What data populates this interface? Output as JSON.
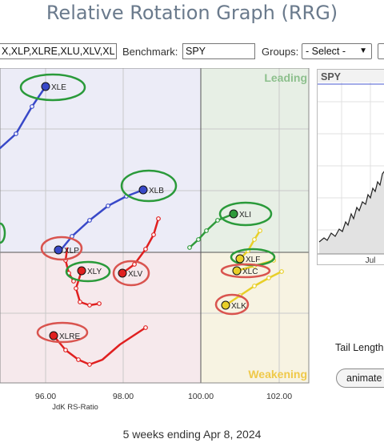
{
  "page_title": "Relative Rotation Graph (RRG)",
  "toolbar": {
    "symbols_value": "X,XLP,XLRE,XLU,XLV,XL",
    "benchmark_label": "Benchmark:",
    "benchmark_value": "SPY",
    "groups_label": "Groups:",
    "groups_selected": "- Select -"
  },
  "chart": {
    "quadrants": {
      "leading": "Leading",
      "weakening": "Weakening"
    },
    "x_ticks": [
      "96.00",
      "98.00",
      "100.00",
      "102.00"
    ],
    "x_label": "JdK RS-Ratio",
    "colors": {
      "leading_bg": "#e6efe4",
      "improving_bg": "#ececf7",
      "lagging_bg": "#f6e9ec",
      "weakening_bg": "#f7f3e2",
      "leading_text": "#8dc08d",
      "weakening_text": "#efc94a",
      "green_highlight": "#2a9a3a",
      "red_highlight": "#d9544f"
    },
    "labels": {
      "XLE": "XLE",
      "XLB": "XLB",
      "XLI": "XLI",
      "XLF": "XLF",
      "XLC": "XLC",
      "XLK": "XLK",
      "XLP": "XLP",
      "XLY": "XLY",
      "XLV": "XLV",
      "XLRE": "XLRE"
    }
  },
  "mini_chart": {
    "symbol": "SPY",
    "x_tick": "Jul"
  },
  "side": {
    "tail_length_label": "Tail Length",
    "animate_label": "animate"
  },
  "footer": {
    "period_text": "5 weeks ending Apr 8, 2024"
  }
}
